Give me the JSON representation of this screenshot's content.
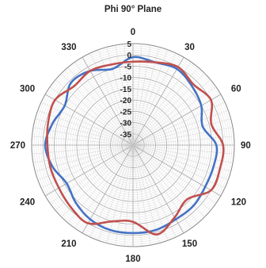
{
  "chart_data": {
    "type": "polar-line",
    "title": "Phi 90° Plane",
    "angle_unit": "degrees",
    "angle_ticks": [
      0,
      30,
      60,
      90,
      120,
      150,
      180,
      210,
      240,
      270,
      300,
      330
    ],
    "angle_tick_labels": [
      "0",
      "30",
      "60",
      "90",
      "120",
      "150",
      "180",
      "210",
      "240",
      "270",
      "300",
      "330"
    ],
    "radial_ticks": [
      5,
      0,
      -5,
      -10,
      -15,
      -20,
      -25,
      -30,
      -35
    ],
    "radial_tick_labels": [
      "5",
      "0",
      "-5",
      "-10",
      "-15",
      "-20",
      "-25",
      "-30",
      "-35"
    ],
    "rlim": [
      -40,
      5
    ],
    "angular_grid_step_deg": 5,
    "grid": true,
    "series": [
      {
        "color": "#4472c4",
        "theta": [
          0,
          15,
          30,
          45,
          60,
          75,
          90,
          105,
          120,
          135,
          150,
          165,
          180,
          195,
          210,
          225,
          240,
          255,
          270,
          285,
          300,
          315,
          330,
          345,
          360
        ],
        "r": [
          -1,
          -2,
          -1,
          -3,
          -5,
          -8,
          -3,
          -3,
          -3,
          -2,
          -2,
          -1,
          -1,
          -1,
          -2,
          -4,
          -6,
          -3,
          -1,
          -3,
          -5,
          -1,
          -2,
          -5,
          -1
        ]
      },
      {
        "color": "#c0504d",
        "theta": [
          0,
          15,
          30,
          45,
          60,
          75,
          90,
          105,
          120,
          135,
          150,
          165,
          180,
          195,
          210,
          225,
          240,
          255,
          270,
          285,
          300,
          315,
          330,
          345,
          360
        ],
        "r": [
          -3,
          -2,
          0,
          -2,
          0,
          -4,
          0,
          0,
          0,
          -6,
          -3,
          1,
          -6,
          -5,
          0,
          -1,
          -2,
          -2,
          -2,
          -1,
          0,
          -3,
          -2,
          -3,
          -3
        ]
      }
    ]
  }
}
